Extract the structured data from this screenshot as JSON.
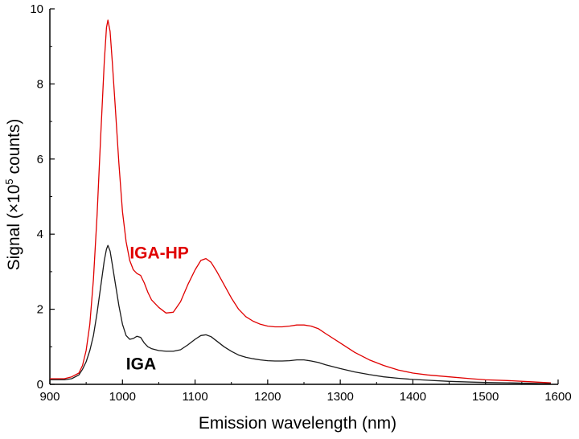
{
  "chart_data": {
    "type": "line",
    "title": "",
    "xlabel": "Emission wavelength (nm)",
    "ylabel_main": "Signal (×10",
    "ylabel_sup": "5",
    "ylabel_tail": " counts)",
    "xlim": [
      900,
      1600
    ],
    "ylim": [
      0,
      10
    ],
    "x_ticks": [
      900,
      1000,
      1100,
      1200,
      1300,
      1400,
      1500,
      1600
    ],
    "y_ticks": [
      0,
      2,
      4,
      6,
      8,
      10
    ],
    "grid": false,
    "series": [
      {
        "name": "IGA-HP",
        "color": "#e00000",
        "x": [
          900,
          920,
          930,
          940,
          945,
          950,
          955,
          960,
          965,
          970,
          975,
          978,
          980,
          983,
          986,
          990,
          995,
          1000,
          1005,
          1010,
          1015,
          1020,
          1025,
          1030,
          1035,
          1040,
          1050,
          1060,
          1070,
          1080,
          1090,
          1100,
          1108,
          1115,
          1122,
          1130,
          1140,
          1150,
          1160,
          1170,
          1180,
          1190,
          1200,
          1210,
          1220,
          1230,
          1240,
          1250,
          1260,
          1270,
          1280,
          1300,
          1320,
          1340,
          1360,
          1380,
          1400,
          1420,
          1450,
          1480,
          1500,
          1530,
          1560,
          1580,
          1590
        ],
        "y": [
          0.15,
          0.15,
          0.2,
          0.3,
          0.5,
          0.9,
          1.6,
          2.8,
          4.5,
          6.6,
          8.6,
          9.5,
          9.7,
          9.4,
          8.6,
          7.4,
          5.9,
          4.6,
          3.8,
          3.3,
          3.05,
          2.95,
          2.9,
          2.7,
          2.45,
          2.25,
          2.05,
          1.9,
          1.92,
          2.2,
          2.65,
          3.05,
          3.3,
          3.35,
          3.25,
          3.0,
          2.65,
          2.3,
          2.0,
          1.8,
          1.68,
          1.6,
          1.55,
          1.53,
          1.53,
          1.55,
          1.58,
          1.58,
          1.55,
          1.48,
          1.35,
          1.1,
          0.85,
          0.65,
          0.5,
          0.38,
          0.3,
          0.25,
          0.2,
          0.15,
          0.12,
          0.1,
          0.07,
          0.05,
          0.04
        ]
      },
      {
        "name": "IGA",
        "color": "#1a1a1a",
        "x": [
          900,
          920,
          930,
          940,
          945,
          950,
          955,
          960,
          965,
          970,
          975,
          978,
          980,
          983,
          986,
          990,
          995,
          1000,
          1005,
          1010,
          1015,
          1020,
          1025,
          1030,
          1035,
          1040,
          1050,
          1060,
          1070,
          1080,
          1090,
          1100,
          1108,
          1115,
          1122,
          1130,
          1140,
          1150,
          1160,
          1170,
          1180,
          1190,
          1200,
          1210,
          1220,
          1230,
          1240,
          1250,
          1260,
          1270,
          1280,
          1300,
          1320,
          1340,
          1360,
          1380,
          1400,
          1420,
          1450,
          1480,
          1500,
          1530,
          1560,
          1580,
          1590
        ],
        "y": [
          0.12,
          0.12,
          0.15,
          0.25,
          0.4,
          0.6,
          0.9,
          1.3,
          1.9,
          2.6,
          3.3,
          3.6,
          3.7,
          3.55,
          3.2,
          2.7,
          2.1,
          1.6,
          1.3,
          1.2,
          1.22,
          1.28,
          1.25,
          1.1,
          1.0,
          0.95,
          0.9,
          0.88,
          0.88,
          0.92,
          1.05,
          1.2,
          1.3,
          1.32,
          1.27,
          1.15,
          1.0,
          0.88,
          0.78,
          0.72,
          0.68,
          0.65,
          0.63,
          0.62,
          0.62,
          0.63,
          0.65,
          0.65,
          0.62,
          0.58,
          0.52,
          0.42,
          0.33,
          0.26,
          0.2,
          0.16,
          0.13,
          0.11,
          0.08,
          0.06,
          0.05,
          0.04,
          0.03,
          0.02,
          0.02
        ]
      }
    ],
    "annotations": [
      {
        "text": "IGA-HP",
        "x": 1010,
        "y": 3.35,
        "color": "#e00000",
        "series": 0
      },
      {
        "text": "IGA",
        "x": 1005,
        "y": 0.4,
        "color": "#000000",
        "series": 1
      }
    ]
  }
}
